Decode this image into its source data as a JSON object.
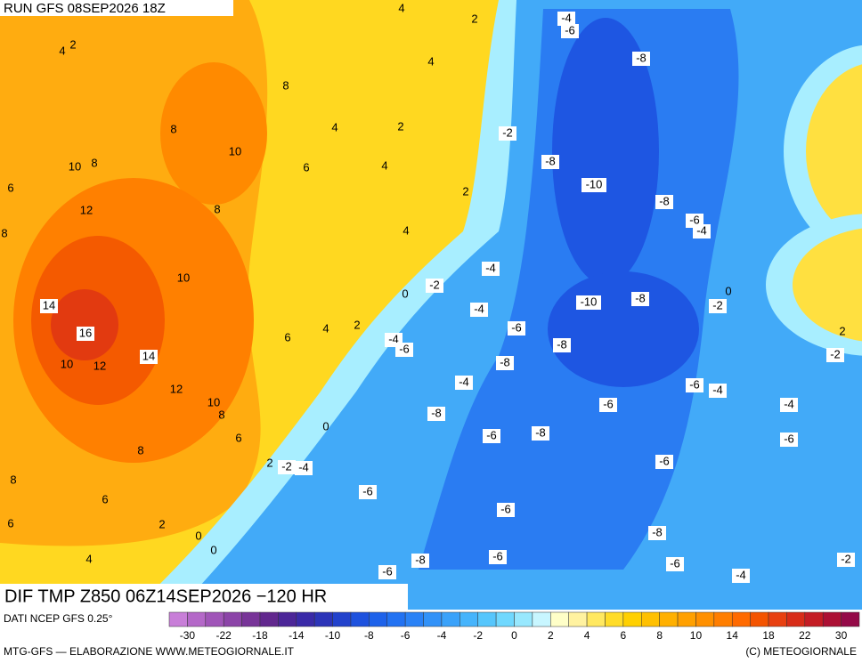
{
  "header": {
    "run": "RUN GFS 08SEP2026 18Z",
    "field": "DIF TMP Z850 06Z14SEP2026 −120 HR",
    "source": "DATI NCEP GFS 0.25°",
    "credit": "MTG-GFS — ELABORAZIONE WWW.METEOGIORNALE.IT",
    "copyright": "(C) METEOGIORNALE"
  },
  "contour_labels": [
    4,
    2,
    4,
    2,
    -4,
    -6,
    4,
    -8,
    8,
    8,
    4,
    2,
    -2,
    10,
    10,
    8,
    6,
    4,
    -8,
    6,
    2,
    -10,
    -8,
    12,
    8,
    -6,
    -4,
    8,
    4,
    -4,
    10,
    -2,
    0,
    0,
    -10,
    -8,
    -2,
    14,
    -4,
    2,
    4,
    6,
    -6,
    16,
    -4,
    -6,
    -8,
    2,
    -2,
    14,
    10,
    12,
    -8,
    -4,
    -6,
    -4,
    12,
    10,
    8,
    -6,
    -4,
    -8,
    0,
    -6,
    -8,
    -6,
    6,
    8,
    -6,
    2,
    -2,
    -4,
    8,
    -6,
    6,
    -6,
    6,
    2,
    0,
    -8,
    0,
    4,
    -6,
    -8,
    -6,
    -2,
    -6,
    -4
  ],
  "colorbar": {
    "labels": [
      -30,
      -22,
      -18,
      -14,
      -10,
      -8,
      -6,
      -4,
      -2,
      0,
      2,
      4,
      6,
      8,
      10,
      14,
      18,
      22,
      30
    ],
    "colors": [
      "#c87ed8",
      "#b468c8",
      "#a055b8",
      "#8c44a8",
      "#783498",
      "#62288e",
      "#4c2698",
      "#3a2aa8",
      "#2c34b8",
      "#2242cc",
      "#1e52de",
      "#1e62ea",
      "#2272f2",
      "#2a82f6",
      "#3292f8",
      "#3aa2fa",
      "#46b4fc",
      "#56c6fc",
      "#70d8fe",
      "#98e8fe",
      "#c8f6ff",
      "#ffffc8",
      "#fff2a0",
      "#ffe860",
      "#ffdc28",
      "#ffd000",
      "#ffc000",
      "#ffb000",
      "#ffa000",
      "#ff9000",
      "#ff7e00",
      "#ff6a00",
      "#f45400",
      "#e84010",
      "#d82c18",
      "#c41c24",
      "#ac1034",
      "#940a48"
    ]
  }
}
